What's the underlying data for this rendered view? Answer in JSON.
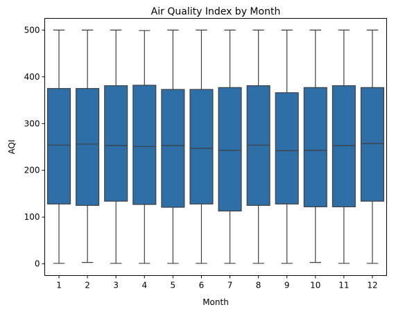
{
  "chart_data": {
    "type": "box",
    "title": "Air Quality Index by Month",
    "xlabel": "Month",
    "ylabel": "AQI",
    "ylim": [
      -25,
      525
    ],
    "yticks": [
      0,
      100,
      200,
      300,
      400,
      500
    ],
    "box_color": "#2f6fa8",
    "line_color": "#3f3f3f",
    "categories": [
      "1",
      "2",
      "3",
      "4",
      "5",
      "6",
      "7",
      "8",
      "9",
      "10",
      "11",
      "12"
    ],
    "series": [
      {
        "category": "1",
        "min": 1,
        "q1": 128,
        "median": 254,
        "q3": 375,
        "max": 500
      },
      {
        "category": "2",
        "min": 3,
        "q1": 125,
        "median": 256,
        "q3": 375,
        "max": 500
      },
      {
        "category": "3",
        "min": 1,
        "q1": 134,
        "median": 253,
        "q3": 381,
        "max": 500
      },
      {
        "category": "4",
        "min": 1,
        "q1": 127,
        "median": 251,
        "q3": 382,
        "max": 499
      },
      {
        "category": "5",
        "min": 1,
        "q1": 121,
        "median": 253,
        "q3": 373,
        "max": 500
      },
      {
        "category": "6",
        "min": 1,
        "q1": 128,
        "median": 247,
        "q3": 373,
        "max": 500
      },
      {
        "category": "7",
        "min": 1,
        "q1": 113,
        "median": 243,
        "q3": 377,
        "max": 500
      },
      {
        "category": "8",
        "min": 1,
        "q1": 125,
        "median": 254,
        "q3": 381,
        "max": 500
      },
      {
        "category": "9",
        "min": 1,
        "q1": 128,
        "median": 242,
        "q3": 366,
        "max": 500
      },
      {
        "category": "10",
        "min": 3,
        "q1": 122,
        "median": 243,
        "q3": 377,
        "max": 500
      },
      {
        "category": "11",
        "min": 1,
        "q1": 122,
        "median": 253,
        "q3": 381,
        "max": 500
      },
      {
        "category": "12",
        "min": 1,
        "q1": 134,
        "median": 257,
        "q3": 377,
        "max": 500
      }
    ]
  }
}
